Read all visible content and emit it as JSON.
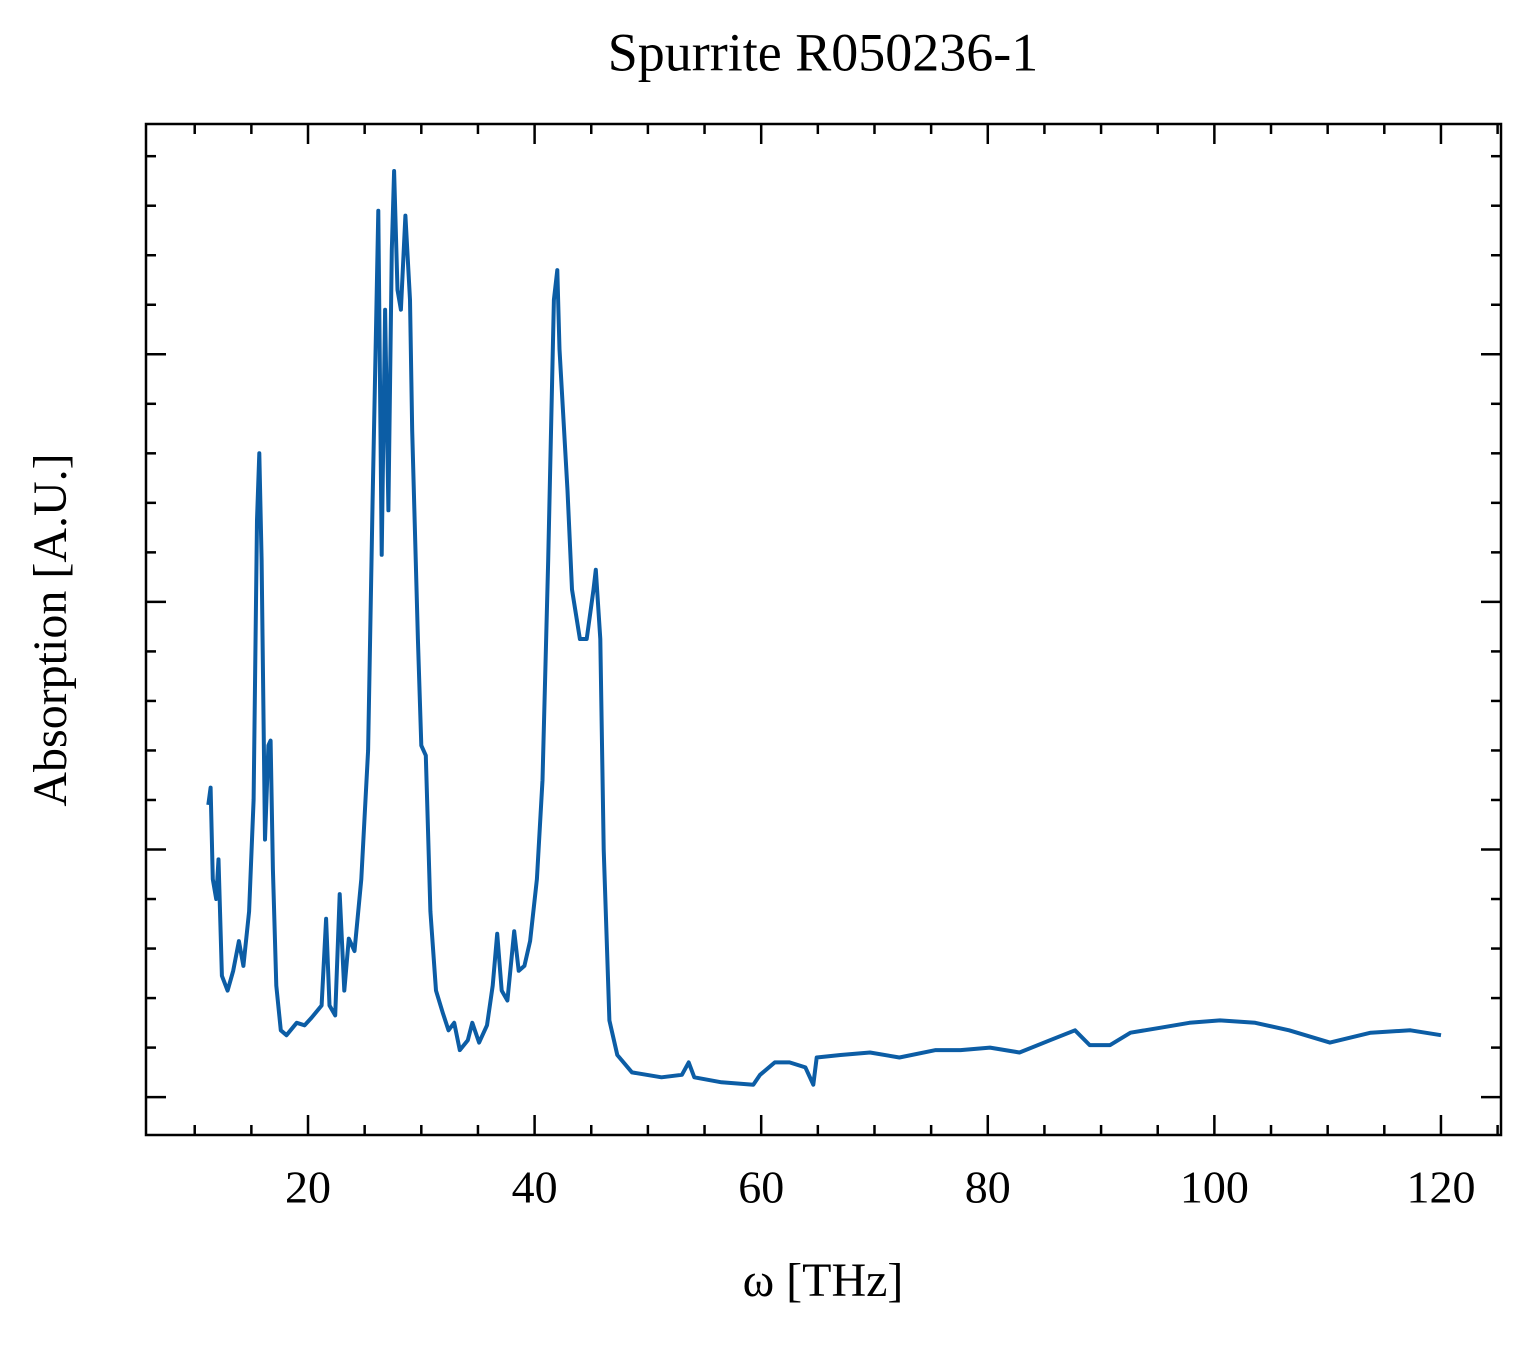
{
  "chart_data": {
    "type": "line",
    "title": "Spurrite R050236-1",
    "x_label": "ω [THz]",
    "y_label": "Absorption [A.U.]",
    "color": "#0c5da5",
    "x": [
      11.2,
      11.4,
      11.6,
      11.9,
      12.1,
      12.4,
      12.9,
      13.4,
      13.9,
      14.3,
      14.8,
      15.2,
      15.5,
      15.7,
      15.9,
      16.2,
      16.5,
      16.7,
      16.9,
      17.2,
      17.6,
      18.1,
      19.0,
      19.7,
      20.3,
      21.2,
      21.6,
      21.9,
      22.4,
      22.8,
      23.2,
      23.6,
      24.1,
      24.7,
      25.3,
      25.7,
      26.0,
      26.2,
      26.5,
      26.8,
      27.1,
      27.4,
      27.6,
      27.9,
      28.2,
      28.6,
      29.0,
      29.2,
      29.7,
      30.0,
      30.4,
      30.8,
      31.3,
      31.9,
      32.4,
      32.9,
      33.4,
      34.1,
      34.5,
      35.1,
      35.8,
      36.3,
      36.7,
      37.1,
      37.6,
      38.2,
      38.6,
      39.1,
      39.6,
      40.2,
      40.7,
      41.2,
      41.7,
      42.0,
      42.2,
      42.9,
      43.3,
      44.0,
      44.6,
      45.2,
      45.4,
      45.8,
      46.1,
      46.6,
      47.3,
      48.6,
      51.2,
      53.0,
      53.6,
      54.1,
      56.5,
      59.3,
      59.9,
      61.2,
      62.5,
      63.9,
      64.6,
      64.9,
      67.0,
      69.6,
      72.2,
      75.4,
      77.6,
      80.2,
      82.8,
      85.5,
      87.7,
      89.0,
      90.8,
      92.6,
      95.2,
      97.8,
      100.5,
      103.6,
      106.6,
      110.2,
      113.8,
      117.3,
      120.0
    ],
    "values": [
      1.18,
      1.25,
      0.88,
      0.8,
      0.96,
      0.49,
      0.43,
      0.51,
      0.63,
      0.53,
      0.75,
      1.2,
      2.33,
      2.6,
      2.17,
      1.04,
      1.42,
      1.44,
      0.92,
      0.45,
      0.27,
      0.25,
      0.3,
      0.29,
      0.32,
      0.37,
      0.72,
      0.37,
      0.33,
      0.82,
      0.43,
      0.64,
      0.59,
      0.88,
      1.4,
      2.41,
      3.1,
      3.58,
      2.19,
      3.18,
      2.37,
      3.42,
      3.74,
      3.26,
      3.18,
      3.56,
      3.22,
      2.69,
      1.85,
      1.42,
      1.38,
      0.75,
      0.43,
      0.34,
      0.27,
      0.3,
      0.19,
      0.23,
      0.3,
      0.22,
      0.29,
      0.45,
      0.66,
      0.43,
      0.39,
      0.67,
      0.51,
      0.53,
      0.63,
      0.88,
      1.28,
      2.17,
      3.22,
      3.34,
      3.02,
      2.45,
      2.05,
      1.85,
      1.85,
      2.05,
      2.13,
      1.85,
      1.0,
      0.31,
      0.17,
      0.1,
      0.08,
      0.09,
      0.14,
      0.08,
      0.06,
      0.05,
      0.09,
      0.14,
      0.14,
      0.12,
      0.05,
      0.16,
      0.17,
      0.18,
      0.16,
      0.19,
      0.19,
      0.2,
      0.18,
      0.23,
      0.27,
      0.21,
      0.21,
      0.26,
      0.28,
      0.3,
      0.31,
      0.3,
      0.27,
      0.22,
      0.26,
      0.27,
      0.25
    ],
    "xlim": [
      5.7,
      125.3
    ],
    "ylim": [
      -0.153,
      3.93
    ],
    "xticks": [
      20,
      40,
      60,
      80,
      100,
      120
    ],
    "yticks": [
      0,
      1,
      2,
      3
    ],
    "x_minor_ticks": [
      10,
      15,
      25,
      30,
      35,
      45,
      50,
      55,
      65,
      70,
      75,
      85,
      90,
      95,
      105,
      110,
      115,
      125
    ],
    "y_minor_ticks": [
      0.2,
      0.4,
      0.6,
      0.8,
      1.2,
      1.4,
      1.6,
      1.8,
      2.2,
      2.4,
      2.6,
      2.8,
      3.2,
      3.4,
      3.6,
      3.8
    ]
  }
}
